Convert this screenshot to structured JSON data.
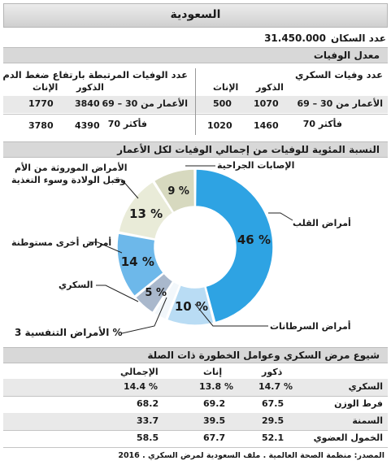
{
  "header": {
    "country": "السعودية"
  },
  "population": {
    "label": "عدد السكان",
    "value": "31.450.000"
  },
  "mortality": {
    "section_title": "معدل الوفيات",
    "diabetes": {
      "title": "عدد وفيات السكري",
      "col_male": "الذكور",
      "col_female": "الإناث",
      "rows": [
        {
          "label": "الأعمار من 30 – 69",
          "male": "1070",
          "female": "500"
        },
        {
          "label": "70 فأكثر",
          "male": "1460",
          "female": "1020"
        }
      ]
    },
    "bp": {
      "title": "عدد الوفيات المرتبطة بارتفاع ضغط الدم",
      "col_male": "الذكور",
      "col_female": "الإناث",
      "rows": [
        {
          "label": "الأعمار من 30 – 69",
          "male": "3840",
          "female": "1770"
        },
        {
          "label": "70 فأكثر",
          "male": "4390",
          "female": "3780"
        }
      ]
    }
  },
  "chart_data": {
    "type": "pie",
    "title": "النسبة المئوية للوفيات من إجمالي الوفيات لكل الأعمار",
    "slices": [
      {
        "label": "أمراض القلب",
        "value": 46,
        "color": "#2ea3e3",
        "text": "46 %"
      },
      {
        "label": "أمراض السرطانات",
        "value": 10,
        "color": "#b9dcf4",
        "text": "10 %"
      },
      {
        "label": "الأمراض التنفسية",
        "value": 3,
        "color": "#f2f7fb",
        "text": ""
      },
      {
        "label": "السكري",
        "value": 5,
        "color": "#a9b8cc",
        "text": "5 %"
      },
      {
        "label": "أمراض أخرى مستوطنة",
        "value": 14,
        "color": "#6db8ea",
        "text": "14 %"
      },
      {
        "label": "الأمراض الموروثة من الأم وقبل الولادة وسوء التغذية",
        "label_line1": "الأمراض الموروثة من الأم",
        "label_line2": "وقبل الولادة وسوء التغذية",
        "value": 13,
        "color": "#e9ebd8",
        "text": "13 %"
      },
      {
        "label": "الإصابات الجراحية",
        "value": 9,
        "color": "#d7d9bf",
        "text": "9 %"
      }
    ],
    "respiratory_callout": "الأمراض التنفسية 3 %"
  },
  "prevalence": {
    "section_title": "شيوع مرض السكري وعوامل الخطورة ذات الصلة",
    "col_male": "ذكور",
    "col_female": "إناث",
    "col_total": "الإجمالي",
    "rows": [
      {
        "label": "السكري",
        "male": "14.7 %",
        "female": "13.8 %",
        "total": "14.4 %"
      },
      {
        "label": "فرط الوزن",
        "male": "67.5",
        "female": "69.2",
        "total": "68.2"
      },
      {
        "label": "السمنة",
        "male": "29.5",
        "female": "39.5",
        "total": "33.7"
      },
      {
        "label": "الخمول العضوي",
        "male": "52.1",
        "female": "67.7",
        "total": "58.5"
      }
    ]
  },
  "source": "المصدر: منظمة الصحة العالمية . ملف السعودية لمرض السكري . 2016"
}
